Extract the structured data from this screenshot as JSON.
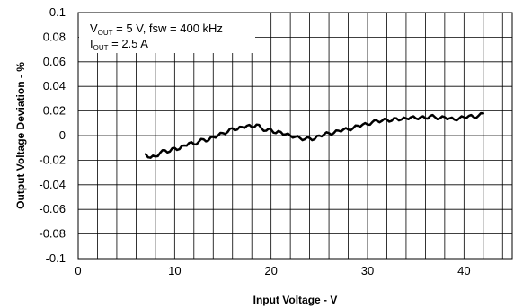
{
  "chart_data": {
    "type": "line",
    "xlabel": "Input Voltage - V",
    "ylabel": "Output Voltage Deviation - %",
    "xlim": [
      0,
      45
    ],
    "ylim": [
      -0.1,
      0.1
    ],
    "x_ticks": [
      "0",
      "10",
      "20",
      "30",
      "40"
    ],
    "y_ticks": [
      "0.1",
      "0.08",
      "0.06",
      "0.04",
      "0.02",
      "0",
      "-0.02",
      "-0.04",
      "-0.06",
      "-0.08",
      "-0.1"
    ],
    "grid": true,
    "annotation": {
      "line1": {
        "v": "V",
        "sub": "OUT",
        "rest": " = 5 V, fsw = 400 kHz"
      },
      "line2": {
        "i": "I",
        "sub": "OUT",
        "rest": " = 2.5 A"
      }
    },
    "series": [
      {
        "x": [
          7.0,
          7.5,
          8.0,
          8.5,
          9.0,
          9.5,
          10.0,
          10.5,
          11.0,
          11.5,
          12.0,
          12.5,
          13.0,
          13.5,
          14.0,
          14.5,
          15.0,
          15.5,
          16.0,
          16.5,
          17.0,
          17.5,
          18.0,
          18.5,
          19.0,
          19.5,
          20.0,
          20.5,
          21.0,
          21.5,
          22.0,
          22.5,
          23.0,
          23.5,
          24.0,
          24.5,
          25.0,
          25.5,
          26.0,
          26.5,
          27.0,
          27.5,
          28.0,
          28.5,
          29.0,
          29.5,
          30.0,
          30.5,
          31.0,
          31.5,
          32.0,
          32.5,
          33.0,
          33.5,
          34.0,
          34.5,
          35.0,
          35.5,
          36.0,
          36.5,
          37.0,
          37.5,
          38.0,
          38.5,
          39.0,
          39.5,
          40.0,
          40.5,
          41.0,
          41.5,
          42.0
        ],
        "values": [
          -0.015,
          -0.018,
          -0.017,
          -0.014,
          -0.012,
          -0.013,
          -0.01,
          -0.011,
          -0.008,
          -0.006,
          -0.007,
          -0.005,
          -0.003,
          -0.004,
          -0.001,
          0.0,
          0.002,
          0.003,
          0.006,
          0.005,
          0.007,
          0.008,
          0.007,
          0.009,
          0.006,
          0.004,
          0.005,
          0.002,
          0.003,
          0.001,
          0.0,
          -0.001,
          -0.002,
          -0.003,
          -0.002,
          -0.003,
          0.0,
          0.001,
          0.002,
          0.002,
          0.004,
          0.005,
          0.005,
          0.006,
          0.008,
          0.009,
          0.009,
          0.011,
          0.012,
          0.012,
          0.013,
          0.012,
          0.014,
          0.013,
          0.014,
          0.015,
          0.014,
          0.015,
          0.014,
          0.016,
          0.015,
          0.014,
          0.015,
          0.014,
          0.013,
          0.014,
          0.015,
          0.016,
          0.015,
          0.016,
          0.018
        ]
      }
    ]
  }
}
